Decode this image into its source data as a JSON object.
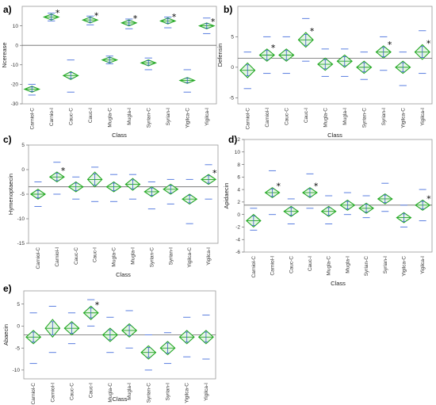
{
  "colors": {
    "diamond": "#22a722",
    "diamond_fill": "#e4f5e4",
    "quantile": "#5b7fe0",
    "ci_bar": "#3a63c8",
    "mean_line": "#666666",
    "frame": "#999999"
  },
  "chart_data": [
    {
      "panel": "a)",
      "type": "means_diamonds",
      "ylabel": "Ncerease",
      "xlabel": "Class",
      "categories": [
        "Carniol-C",
        "Carnio-I",
        "Cauc-C",
        "Cauc-I",
        "Mugla-C",
        "Mugla-I",
        "Syrian-C",
        "Syrian-I",
        "Yigilca-C",
        "Yigilca-I"
      ],
      "means": [
        -22.5,
        14.5,
        -15.5,
        13,
        -7.5,
        11.5,
        -9,
        12.5,
        -18,
        10
      ],
      "diamond_half": [
        1.5,
        1.5,
        2,
        1.5,
        1.5,
        1.5,
        1.5,
        1.5,
        1.5,
        1.5
      ],
      "upper_quantile": [
        -20,
        16.5,
        -7.5,
        15,
        -5.5,
        13.5,
        -6.5,
        14.5,
        -12.5,
        14
      ],
      "lower_quantile": [
        -25.5,
        12.5,
        -24,
        10.5,
        -9.5,
        8.5,
        -12.5,
        9,
        -24,
        6
      ],
      "stars": [
        false,
        true,
        false,
        true,
        false,
        true,
        false,
        true,
        false,
        true
      ],
      "ylim": [
        -30,
        20
      ],
      "yticks": [
        -30,
        -20,
        -10,
        0,
        10
      ],
      "grand_mean": 0
    },
    {
      "panel": "b)",
      "type": "means_diamonds",
      "ylabel": "Defensin",
      "xlabel": "Class",
      "categories": [
        "Carniol-C",
        "Carniol-I",
        "Cauc-C",
        "Cauc-I",
        "Mugla-C",
        "Mugla-I",
        "Syrian-C",
        "Syrian-I",
        "Yigilca-C",
        "Yigilca-I"
      ],
      "means": [
        -0.5,
        2,
        2,
        4.5,
        0.5,
        1,
        0,
        2.5,
        0,
        2.5
      ],
      "diamond_half": [
        1.2,
        1,
        1,
        1.2,
        1,
        1,
        1,
        1,
        1,
        1.2
      ],
      "upper_quantile": [
        2.5,
        5,
        5,
        8,
        3,
        3,
        2.5,
        5,
        2.5,
        6
      ],
      "lower_quantile": [
        -3.5,
        -1,
        -1,
        1,
        -1.5,
        -1.5,
        -2,
        -0.5,
        -3,
        -1
      ],
      "stars": [
        false,
        true,
        false,
        true,
        false,
        false,
        false,
        true,
        false,
        true
      ],
      "ylim": [
        -6,
        10
      ],
      "yticks": [
        -5,
        0,
        5
      ],
      "grand_mean": 1.5
    },
    {
      "panel": "c)",
      "type": "means_diamonds",
      "ylabel": "Hymenoptaecin",
      "xlabel": "Class",
      "categories": [
        "Carniol-C",
        "Carniol-I",
        "Cauc-C",
        "Cauc-I",
        "Mugla-C",
        "Mugla-I",
        "Syrian-C",
        "Syrian-I",
        "Yigilca-C",
        "Yigilca-I"
      ],
      "means": [
        -5,
        -1.5,
        -3.5,
        -2,
        -3.5,
        -3,
        -4.5,
        -4,
        -6,
        -2
      ],
      "diamond_half": [
        1,
        1,
        1,
        1.5,
        1,
        1.2,
        1,
        1,
        1,
        1
      ],
      "upper_quantile": [
        -2.5,
        1.5,
        -1.5,
        0.5,
        -1,
        -1,
        -2.5,
        -2,
        -2,
        1
      ],
      "lower_quantile": [
        -7.5,
        -5,
        -6,
        -6.5,
        -6.5,
        -6,
        -8,
        -7,
        -11,
        -6
      ],
      "stars": [
        false,
        true,
        false,
        false,
        false,
        false,
        false,
        false,
        false,
        true
      ],
      "ylim": [
        -15,
        5
      ],
      "yticks": [
        -15,
        -10,
        -5,
        0,
        5
      ],
      "grand_mean": -3.5
    },
    {
      "panel": "d)",
      "type": "means_diamonds",
      "ylabel": "Apidaecin",
      "xlabel": "Class",
      "categories": [
        "Carniol-C",
        "Carniol-I",
        "Cauc-C",
        "Cauc-I",
        "Mugla-C",
        "Mugla-I",
        "Syrian-C",
        "Syrian-I",
        "Yigilca-C",
        "Yigilca-I"
      ],
      "means": [
        -1,
        3.5,
        0.5,
        3.5,
        0.5,
        1.5,
        1,
        2.5,
        -0.5,
        1.5
      ],
      "diamond_half": [
        1,
        0.8,
        0.8,
        0.8,
        0.8,
        0.8,
        0.8,
        0.8,
        0.8,
        0.8
      ],
      "upper_quantile": [
        1,
        7,
        2.5,
        6.5,
        3,
        3.5,
        3,
        5,
        1.5,
        4
      ],
      "lower_quantile": [
        -2.5,
        0,
        -1.5,
        1,
        -1.5,
        0,
        -0.5,
        0.5,
        -2,
        -1
      ],
      "stars": [
        false,
        true,
        false,
        true,
        false,
        false,
        false,
        false,
        false,
        true
      ],
      "ylim": [
        -6,
        12
      ],
      "yticks": [
        -6,
        -4,
        -2,
        0,
        2,
        4,
        6,
        8,
        10,
        12
      ],
      "grand_mean": 1.5
    },
    {
      "panel": "e)",
      "type": "means_diamonds",
      "ylabel": "Abaecin",
      "xlabel": "Class",
      "categories": [
        "Carniol-C",
        "Carniol-I",
        "Cauc-C",
        "Cauc-I",
        "Mugla-C",
        "Mugla-I",
        "Syrian-C",
        "Syrian-I",
        "Yigilca-C",
        "Yigilca-I"
      ],
      "means": [
        -2.5,
        -0.5,
        -0.5,
        3,
        -2,
        -1,
        -6,
        -5,
        -2.5,
        -2.5
      ],
      "diamond_half": [
        1.5,
        2,
        1.5,
        1.5,
        1.5,
        1.5,
        1.5,
        1.5,
        1.5,
        1.5
      ],
      "upper_quantile": [
        3,
        4.5,
        3,
        6,
        2,
        3.5,
        -2,
        -1.5,
        2,
        2.5
      ],
      "lower_quantile": [
        -8.5,
        -6,
        -4,
        0,
        -6,
        -5,
        -10,
        -8.5,
        -7,
        -7.5
      ],
      "stars": [
        false,
        false,
        false,
        true,
        false,
        false,
        false,
        false,
        false,
        false
      ],
      "ylim": [
        -12,
        8
      ],
      "yticks": [
        -10,
        -5,
        0,
        5
      ],
      "grand_mean": -2
    }
  ]
}
